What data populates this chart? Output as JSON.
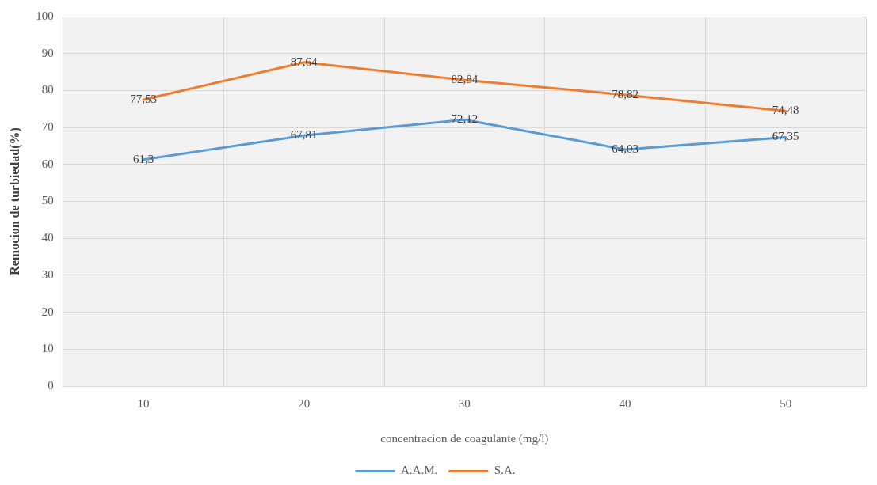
{
  "chart_data": {
    "type": "line",
    "xlabel": "concentracion de coagulante (mg/l)",
    "ylabel": "Remocion de turbiedad(%)",
    "categories": [
      "10",
      "20",
      "30",
      "40",
      "50"
    ],
    "series": [
      {
        "name": "A.A.M.",
        "color": "#5b9bd5",
        "values": [
          61.3,
          67.81,
          72.12,
          64.03,
          67.35
        ],
        "value_labels": [
          "61,3",
          "67,81",
          "72,12",
          "64,03",
          "67,35"
        ]
      },
      {
        "name": "S.A.",
        "color": "#ed7d31",
        "values": [
          77.53,
          87.64,
          82.84,
          78.82,
          74.48
        ],
        "value_labels": [
          "77,53",
          "87,64",
          "82,84",
          "78,82",
          "74,48"
        ]
      }
    ],
    "ylim": [
      0,
      100
    ],
    "yticks": [
      0,
      10,
      20,
      30,
      40,
      50,
      60,
      70,
      80,
      90,
      100
    ],
    "grid": true,
    "legend": "bottom",
    "marker": "none",
    "line_style": "solid"
  }
}
